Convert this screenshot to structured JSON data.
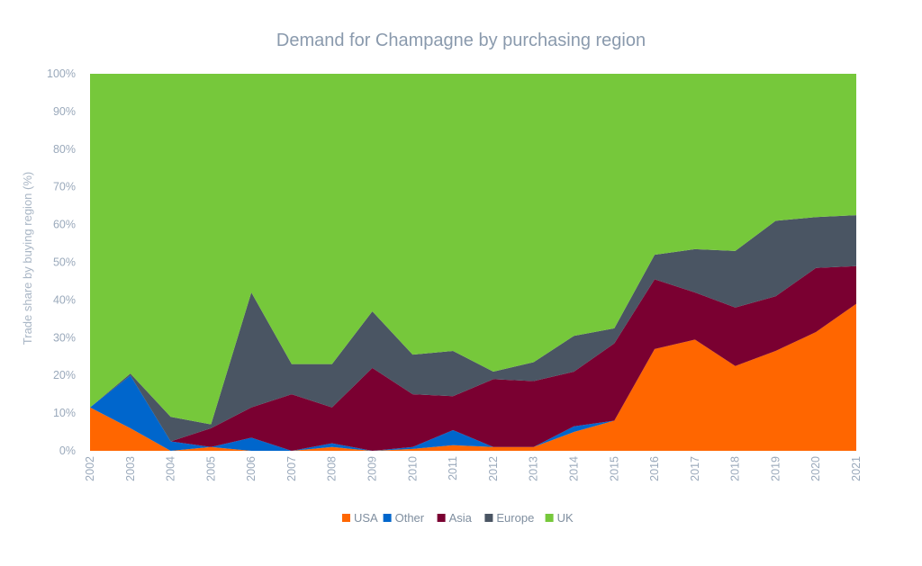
{
  "chart_data": {
    "type": "area",
    "stacked": true,
    "title": "Demand for Champagne by purchasing region",
    "xlabel": "",
    "ylabel": "Trade share by buying region (%)",
    "ylim": [
      0,
      100
    ],
    "y_ticks": [
      "0%",
      "10%",
      "20%",
      "30%",
      "40%",
      "50%",
      "60%",
      "70%",
      "80%",
      "90%",
      "100%"
    ],
    "categories": [
      "2002",
      "2003",
      "2004",
      "2005",
      "2006",
      "2007",
      "2008",
      "2009",
      "2010",
      "2011",
      "2012",
      "2013",
      "2014",
      "2015",
      "2016",
      "2017",
      "2018",
      "2019",
      "2020",
      "2021"
    ],
    "grid": false,
    "legend_position": "bottom",
    "series": [
      {
        "name": "USA",
        "color": "#ff6600",
        "values": [
          11.5,
          6,
          0,
          1,
          0,
          0,
          1,
          0,
          0.5,
          1.5,
          1,
          1,
          5,
          8,
          27,
          29.5,
          22.5,
          26.5,
          31.5,
          39
        ]
      },
      {
        "name": "Other",
        "color": "#0066cc",
        "values": [
          0,
          14,
          2.5,
          0,
          3.5,
          0,
          1,
          0,
          0.5,
          4,
          0,
          0,
          1.5,
          0,
          0,
          0,
          0,
          0,
          0,
          0
        ]
      },
      {
        "name": "Asia",
        "color": "#7a0031",
        "values": [
          0,
          0,
          0,
          5,
          8,
          15,
          9.5,
          22,
          14,
          9,
          18,
          17.5,
          14.5,
          20.5,
          18.5,
          12.5,
          15.5,
          14.5,
          17,
          10
        ]
      },
      {
        "name": "Europe",
        "color": "#4a5563",
        "values": [
          0,
          0.5,
          6.5,
          1,
          30.5,
          8,
          11.5,
          15,
          10.5,
          12,
          2,
          5,
          9.5,
          4,
          6.5,
          11.5,
          15,
          20,
          13.5,
          13.5
        ]
      },
      {
        "name": "UK",
        "color": "#76c83b",
        "values": [
          88.5,
          79.5,
          91,
          93,
          58,
          77,
          77,
          63,
          74.5,
          73.5,
          79,
          76.5,
          69.5,
          67.5,
          48,
          46.5,
          47,
          39,
          38,
          37.5
        ]
      }
    ]
  }
}
